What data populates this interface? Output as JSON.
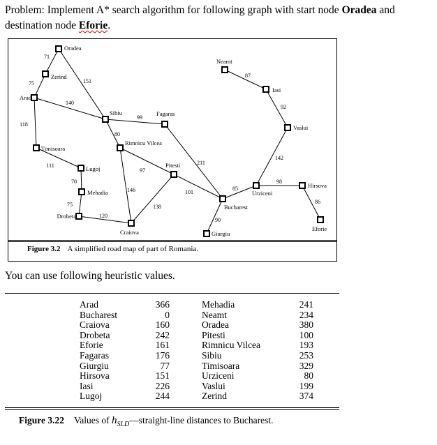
{
  "problem": {
    "prefix": "Problem: Implement A* search algorithm for following graph with start node ",
    "start": "Oradea",
    "middle": " and destination node ",
    "dest": "Eforie",
    "suffix": "."
  },
  "figure1": {
    "label": "Figure 3.2",
    "caption": "A simplified road map of part of Romania."
  },
  "hint": "You can use following heuristic values.",
  "graph": {
    "nodes": [
      "Oradea",
      "Zerind",
      "Arad",
      "Timisoara",
      "Lugoj",
      "Mehadia",
      "Drobeta",
      "Craiova",
      "Sibiu",
      "Rimnicu Vilcea",
      "Fagaras",
      "Pitesti",
      "Bucharest",
      "Giurgiu",
      "Urziceni",
      "Hirsova",
      "Eforie",
      "Vaslui",
      "Iasi",
      "Neamt"
    ],
    "edges": [
      {
        "a": "Oradea",
        "b": "Zerind",
        "d": "71"
      },
      {
        "a": "Zerind",
        "b": "Arad",
        "d": "75"
      },
      {
        "a": "Oradea",
        "b": "Sibiu",
        "d": "151"
      },
      {
        "a": "Arad",
        "b": "Sibiu",
        "d": "140"
      },
      {
        "a": "Arad",
        "b": "Timisoara",
        "d": "118"
      },
      {
        "a": "Timisoara",
        "b": "Lugoj",
        "d": "111"
      },
      {
        "a": "Lugoj",
        "b": "Mehadia",
        "d": "70"
      },
      {
        "a": "Mehadia",
        "b": "Drobeta",
        "d": "75"
      },
      {
        "a": "Drobeta",
        "b": "Craiova",
        "d": "120"
      },
      {
        "a": "Sibiu",
        "b": "Fagaras",
        "d": "99"
      },
      {
        "a": "Sibiu",
        "b": "Rimnicu Vilcea",
        "d": "80"
      },
      {
        "a": "Rimnicu Vilcea",
        "b": "Pitesti",
        "d": "97"
      },
      {
        "a": "Rimnicu Vilcea",
        "b": "Craiova",
        "d": "146"
      },
      {
        "a": "Craiova",
        "b": "Pitesti",
        "d": "138"
      },
      {
        "a": "Fagaras",
        "b": "Bucharest",
        "d": "211"
      },
      {
        "a": "Pitesti",
        "b": "Bucharest",
        "d": "101"
      },
      {
        "a": "Bucharest",
        "b": "Giurgiu",
        "d": "90"
      },
      {
        "a": "Bucharest",
        "b": "Urziceni",
        "d": "85"
      },
      {
        "a": "Urziceni",
        "b": "Hirsova",
        "d": "98"
      },
      {
        "a": "Hirsova",
        "b": "Eforie",
        "d": "86"
      },
      {
        "a": "Urziceni",
        "b": "Vaslui",
        "d": "142"
      },
      {
        "a": "Vaslui",
        "b": "Iasi",
        "d": "92"
      },
      {
        "a": "Iasi",
        "b": "Neamt",
        "d": "87"
      }
    ]
  },
  "heuristics": {
    "left": [
      {
        "city": "Arad",
        "h": "366"
      },
      {
        "city": "Bucharest",
        "h": "0"
      },
      {
        "city": "Craiova",
        "h": "160"
      },
      {
        "city": "Drobeta",
        "h": "242"
      },
      {
        "city": "Eforie",
        "h": "161"
      },
      {
        "city": "Fagaras",
        "h": "176"
      },
      {
        "city": "Giurgiu",
        "h": "77"
      },
      {
        "city": "Hirsova",
        "h": "151"
      },
      {
        "city": "Iasi",
        "h": "226"
      },
      {
        "city": "Lugoj",
        "h": "244"
      }
    ],
    "right": [
      {
        "city": "Mehadia",
        "h": "241"
      },
      {
        "city": "Neamt",
        "h": "234"
      },
      {
        "city": "Oradea",
        "h": "380"
      },
      {
        "city": "Pitesti",
        "h": "100"
      },
      {
        "city": "Rimnicu Vilcea",
        "h": "193"
      },
      {
        "city": "Sibiu",
        "h": "253"
      },
      {
        "city": "Timisoara",
        "h": "329"
      },
      {
        "city": "Urziceni",
        "h": "80"
      },
      {
        "city": "Vaslui",
        "h": "199"
      },
      {
        "city": "Zerind",
        "h": "374"
      }
    ]
  },
  "figure2": {
    "label": "Figure 3.22",
    "caption_pre": "Values of ",
    "h_symbol": "h",
    "h_sub": "SLD",
    "caption_post": "—straight-line distances to Bucharest."
  }
}
